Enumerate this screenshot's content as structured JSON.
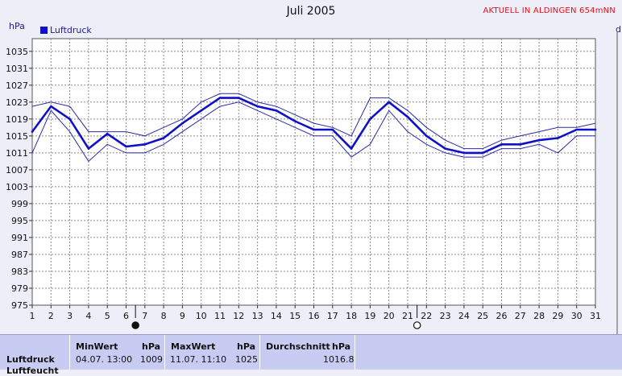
{
  "chart_data": {
    "type": "line",
    "title": "Juli 2005",
    "subtitle": "AKTUELL IN ALDINGEN 654mNN",
    "ylabel": "hPa",
    "ylabel_right": "d",
    "ylim": [
      975,
      1038
    ],
    "yticks": [
      975,
      979,
      983,
      987,
      991,
      995,
      999,
      1003,
      1007,
      1011,
      1015,
      1019,
      1023,
      1027,
      1031,
      1035
    ],
    "x": [
      1,
      2,
      3,
      4,
      5,
      6,
      7,
      8,
      9,
      10,
      11,
      12,
      13,
      14,
      15,
      16,
      17,
      18,
      19,
      20,
      21,
      22,
      23,
      24,
      25,
      26,
      27,
      28,
      29,
      30,
      31
    ],
    "grid": true,
    "legend_position": "top-left",
    "series": [
      {
        "name": "Luftdruck",
        "role": "mean",
        "values": [
          1016,
          1022,
          1019,
          1012,
          1015.5,
          1012.5,
          1013,
          1014.5,
          1018,
          1021,
          1024,
          1024,
          1022,
          1021,
          1018.5,
          1016.5,
          1016.5,
          1012,
          1019,
          1023,
          1019.5,
          1015,
          1012,
          1011,
          1011,
          1013,
          1013,
          1014,
          1014.5,
          1016.5,
          1016.5
        ]
      },
      {
        "role": "max",
        "values": [
          1022,
          1023,
          1022,
          1016,
          1016,
          1016,
          1015,
          1017,
          1019,
          1023,
          1025,
          1025,
          1023,
          1022,
          1020,
          1018,
          1017,
          1015,
          1024,
          1024,
          1021,
          1017,
          1014,
          1012,
          1012,
          1014,
          1015,
          1016,
          1017,
          1017,
          1018
        ]
      },
      {
        "role": "min",
        "values": [
          1011,
          1021,
          1016,
          1009,
          1013,
          1011,
          1011,
          1013,
          1016,
          1019,
          1022,
          1023,
          1021,
          1019,
          1017,
          1015,
          1015,
          1010,
          1013,
          1021,
          1016,
          1013,
          1011,
          1010,
          1010,
          1012,
          1012,
          1013,
          1011,
          1015,
          1015
        ]
      }
    ],
    "moon_phases": [
      {
        "day": 6.5,
        "phase": "new-moon"
      },
      {
        "day": 21.5,
        "phase": "full-moon"
      }
    ],
    "colors": {
      "mean": "#1010c8",
      "band": "#2a2aa8",
      "grid": "#8a8a8a",
      "plot_bg": "#ffffff"
    }
  },
  "stats": {
    "row_label": "Luftdruck",
    "row_label_2": "Luftfeucht",
    "min": {
      "header": "MinWert",
      "unit": "hPa",
      "time": "04.07.  13:00",
      "value": "1009"
    },
    "max": {
      "header": "MaxWert",
      "unit": "hPa",
      "time": "11.07.  11:10",
      "value": "1025"
    },
    "avg": {
      "header": "Durchschnitt",
      "unit": "hPa",
      "value": "1016.8"
    }
  }
}
